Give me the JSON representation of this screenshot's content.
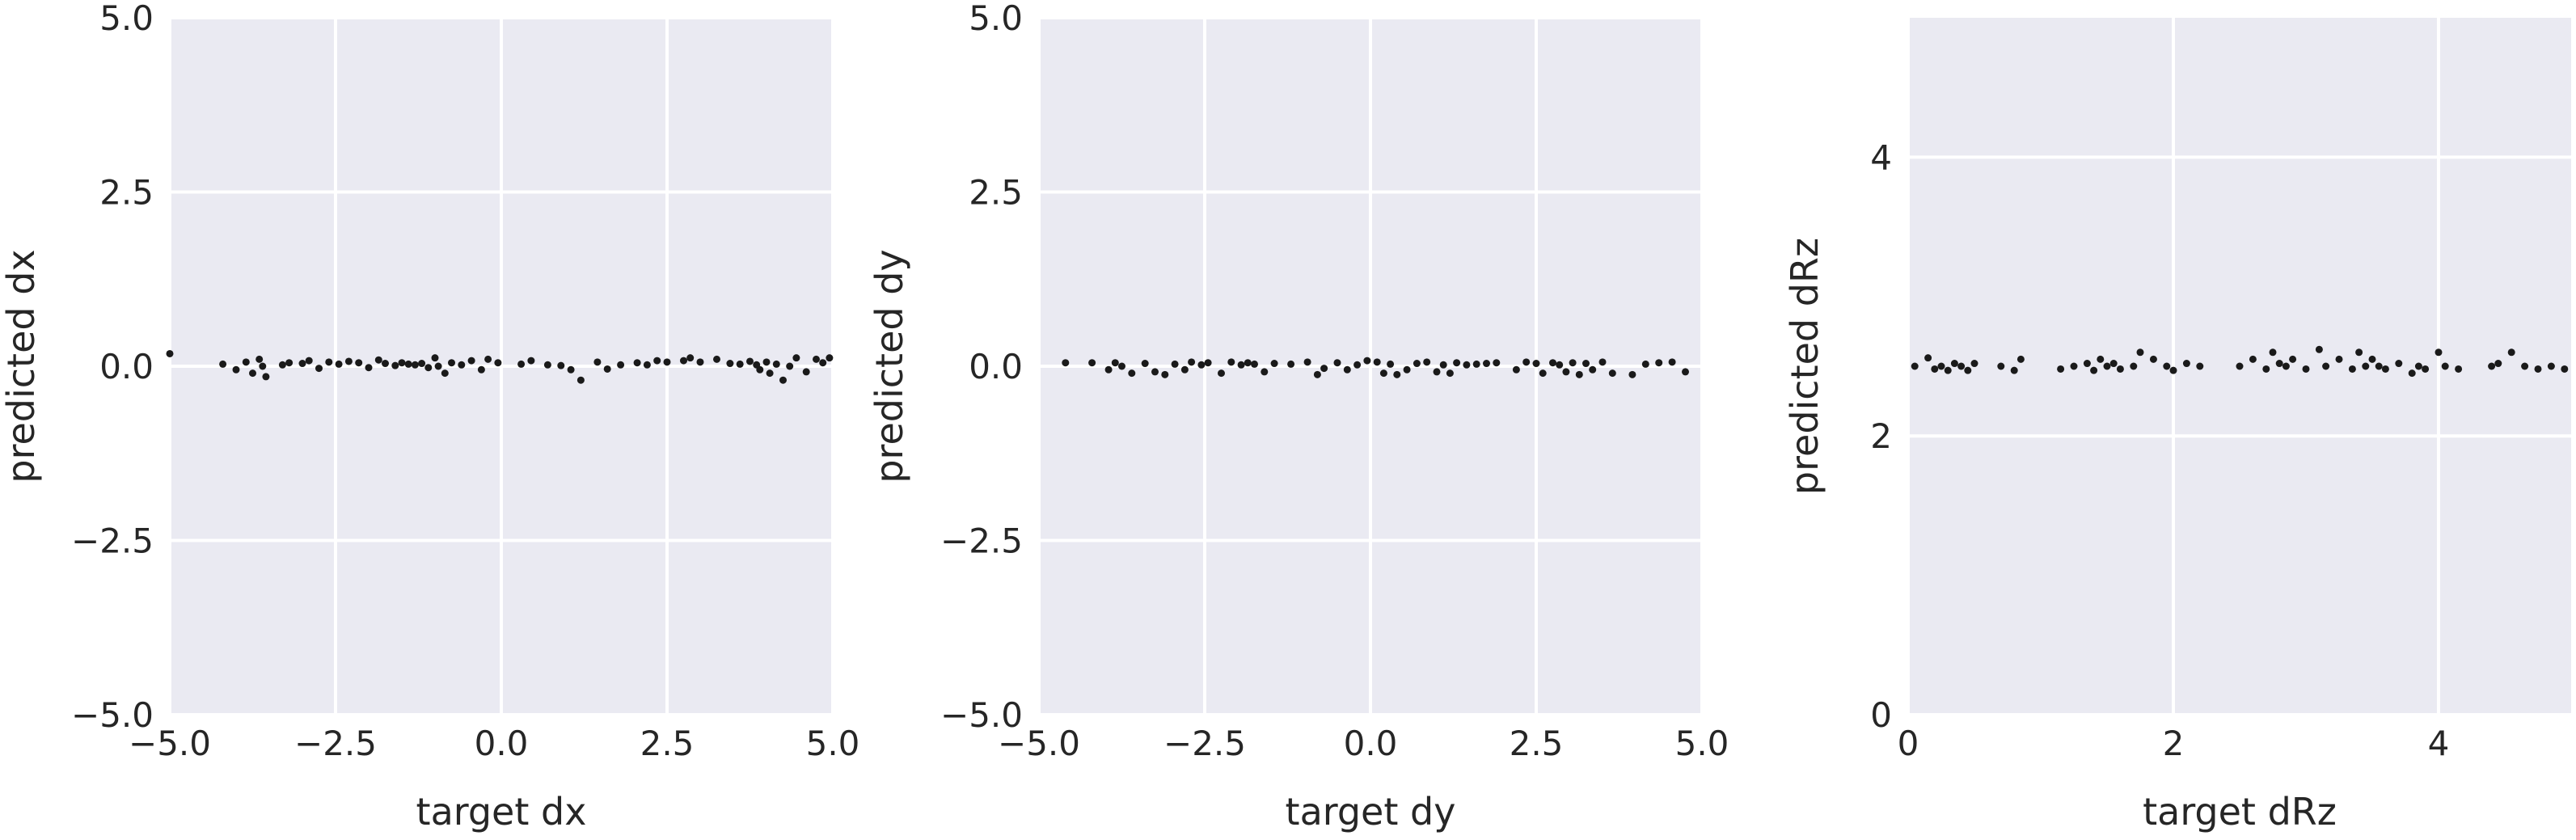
{
  "chart_data": [
    {
      "type": "scatter",
      "xlabel": "target dx",
      "ylabel": "predicted dx",
      "xlim": [
        -5.0,
        5.0
      ],
      "ylim": [
        -5.0,
        5.0
      ],
      "xticks": [
        -5.0,
        -2.5,
        0.0,
        2.5,
        5.0
      ],
      "yticks": [
        -5.0,
        -2.5,
        0.0,
        2.5,
        5.0
      ],
      "xtick_labels": [
        "−5.0",
        "−2.5",
        "0.0",
        "2.5",
        "5.0"
      ],
      "ytick_labels": [
        "−5.0",
        "−2.5",
        "0.0",
        "2.5",
        "5.0"
      ],
      "grid": true,
      "point_color": "#1a1a1a",
      "x": [
        -5.0,
        -4.2,
        -4.0,
        -3.85,
        -3.75,
        -3.65,
        -3.6,
        -3.55,
        -3.3,
        -3.2,
        -3.0,
        -2.9,
        -2.75,
        -2.6,
        -2.45,
        -2.3,
        -2.15,
        -2.0,
        -1.85,
        -1.75,
        -1.6,
        -1.5,
        -1.4,
        -1.3,
        -1.2,
        -1.1,
        -1.0,
        -0.95,
        -0.85,
        -0.75,
        -0.6,
        -0.45,
        -0.3,
        -0.2,
        -0.05,
        0.3,
        0.45,
        0.7,
        0.9,
        1.05,
        1.2,
        1.45,
        1.6,
        1.8,
        2.05,
        2.2,
        2.35,
        2.5,
        2.75,
        2.85,
        3.0,
        3.25,
        3.45,
        3.6,
        3.75,
        3.85,
        3.9,
        4.0,
        4.05,
        4.15,
        4.25,
        4.35,
        4.45,
        4.6,
        4.75,
        4.85,
        4.95
      ],
      "y": [
        0.18,
        0.03,
        -0.05,
        0.06,
        -0.1,
        0.1,
        0.0,
        -0.15,
        0.02,
        0.05,
        0.04,
        0.08,
        -0.03,
        0.06,
        0.03,
        0.07,
        0.05,
        -0.02,
        0.09,
        0.04,
        0.01,
        0.05,
        0.03,
        0.02,
        0.04,
        -0.02,
        0.12,
        0.0,
        -0.1,
        0.05,
        0.02,
        0.08,
        -0.05,
        0.1,
        0.05,
        0.03,
        0.08,
        0.02,
        0.01,
        -0.05,
        -0.2,
        0.06,
        -0.04,
        0.02,
        0.05,
        0.02,
        0.08,
        0.06,
        0.08,
        0.12,
        0.06,
        0.1,
        0.04,
        0.03,
        0.07,
        0.02,
        -0.05,
        0.06,
        -0.1,
        0.03,
        -0.2,
        0.0,
        0.12,
        -0.08,
        0.1,
        0.05,
        0.12
      ]
    },
    {
      "type": "scatter",
      "xlabel": "target dy",
      "ylabel": "predicted dy",
      "xlim": [
        -5.0,
        5.0
      ],
      "ylim": [
        -5.0,
        5.0
      ],
      "xticks": [
        -5.0,
        -2.5,
        0.0,
        2.5,
        5.0
      ],
      "yticks": [
        -5.0,
        -2.5,
        0.0,
        2.5,
        5.0
      ],
      "xtick_labels": [
        "−5.0",
        "−2.5",
        "0.0",
        "2.5",
        "5.0"
      ],
      "ytick_labels": [
        "−5.0",
        "−2.5",
        "0.0",
        "2.5",
        "5.0"
      ],
      "grid": true,
      "point_color": "#1a1a1a",
      "x": [
        -4.6,
        -4.2,
        -3.95,
        -3.85,
        -3.75,
        -3.6,
        -3.4,
        -3.25,
        -3.1,
        -2.95,
        -2.8,
        -2.7,
        -2.55,
        -2.45,
        -2.25,
        -2.1,
        -1.95,
        -1.85,
        -1.75,
        -1.6,
        -1.45,
        -1.2,
        -0.95,
        -0.8,
        -0.7,
        -0.5,
        -0.35,
        -0.2,
        -0.05,
        0.1,
        0.2,
        0.3,
        0.4,
        0.55,
        0.7,
        0.85,
        1.0,
        1.1,
        1.2,
        1.3,
        1.45,
        1.6,
        1.75,
        1.9,
        2.2,
        2.35,
        2.5,
        2.6,
        2.75,
        2.85,
        2.95,
        3.05,
        3.15,
        3.25,
        3.35,
        3.5,
        3.65,
        3.95,
        4.15,
        4.35,
        4.55,
        4.75
      ],
      "y": [
        0.05,
        0.05,
        -0.05,
        0.05,
        0.0,
        -0.1,
        0.04,
        -0.08,
        -0.12,
        0.03,
        -0.05,
        0.06,
        0.02,
        0.05,
        -0.1,
        0.06,
        0.02,
        0.05,
        0.03,
        -0.08,
        0.04,
        0.03,
        0.06,
        -0.12,
        -0.03,
        0.05,
        -0.05,
        0.02,
        0.08,
        0.06,
        -0.1,
        0.03,
        -0.12,
        -0.05,
        0.04,
        0.06,
        -0.08,
        0.02,
        -0.1,
        0.05,
        0.02,
        0.03,
        0.04,
        0.05,
        -0.05,
        0.06,
        0.04,
        -0.1,
        0.05,
        0.02,
        -0.08,
        0.05,
        -0.12,
        0.04,
        -0.05,
        0.06,
        -0.1,
        -0.12,
        0.03,
        0.05,
        0.06,
        -0.08
      ]
    },
    {
      "type": "scatter",
      "xlabel": "target dRz",
      "ylabel": "predicted dRz",
      "xlim": [
        0,
        5
      ],
      "ylim": [
        0,
        5
      ],
      "xticks": [
        0,
        2,
        4
      ],
      "yticks": [
        0,
        2,
        4
      ],
      "xtick_labels": [
        "0",
        "2",
        "4"
      ],
      "ytick_labels": [
        "0",
        "2",
        "4"
      ],
      "grid": true,
      "point_color": "#1a1a1a",
      "x": [
        0.05,
        0.15,
        0.2,
        0.25,
        0.3,
        0.35,
        0.4,
        0.45,
        0.5,
        0.7,
        0.8,
        0.85,
        1.15,
        1.25,
        1.35,
        1.4,
        1.45,
        1.5,
        1.55,
        1.6,
        1.7,
        1.75,
        1.85,
        1.95,
        2.0,
        2.1,
        2.2,
        2.5,
        2.6,
        2.7,
        2.75,
        2.8,
        2.85,
        2.9,
        3.0,
        3.1,
        3.15,
        3.25,
        3.35,
        3.4,
        3.45,
        3.5,
        3.55,
        3.6,
        3.7,
        3.8,
        3.85,
        3.9,
        4.0,
        4.05,
        4.15,
        4.4,
        4.45,
        4.55,
        4.65,
        4.75,
        4.85,
        4.95
      ],
      "y": [
        2.5,
        2.56,
        2.48,
        2.5,
        2.47,
        2.52,
        2.5,
        2.47,
        2.52,
        2.5,
        2.47,
        2.55,
        2.48,
        2.5,
        2.52,
        2.47,
        2.55,
        2.5,
        2.52,
        2.48,
        2.5,
        2.6,
        2.55,
        2.5,
        2.47,
        2.52,
        2.5,
        2.5,
        2.55,
        2.48,
        2.6,
        2.52,
        2.5,
        2.55,
        2.48,
        2.62,
        2.5,
        2.55,
        2.48,
        2.6,
        2.5,
        2.55,
        2.5,
        2.48,
        2.52,
        2.45,
        2.5,
        2.48,
        2.6,
        2.5,
        2.48,
        2.5,
        2.52,
        2.6,
        2.5,
        2.48,
        2.5,
        2.48
      ]
    }
  ]
}
